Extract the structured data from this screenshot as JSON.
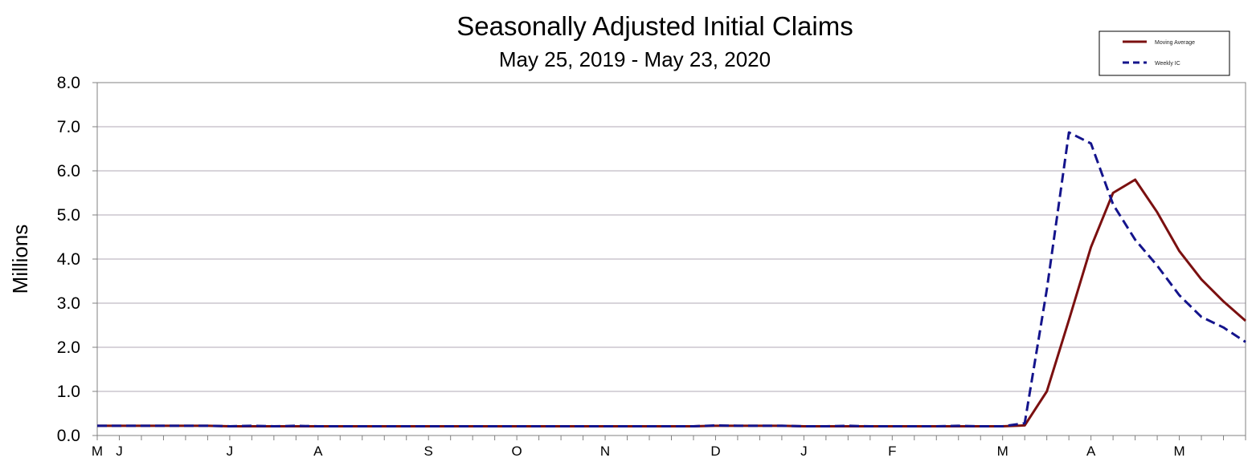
{
  "chart_data": {
    "type": "line",
    "title": "Seasonally Adjusted Initial Claims",
    "subtitle": "May 25, 2019 - May 23, 2020",
    "xlabel": "",
    "ylabel": "Millions",
    "ylim": [
      0,
      8
    ],
    "yticks": [
      "0.0",
      "1.0",
      "2.0",
      "3.0",
      "4.0",
      "5.0",
      "6.0",
      "7.0",
      "8.0"
    ],
    "x_tick_labels": [
      {
        "label": "M",
        "week": 0
      },
      {
        "label": "J",
        "week": 1
      },
      {
        "label": "J",
        "week": 6
      },
      {
        "label": "A",
        "week": 10
      },
      {
        "label": "S",
        "week": 15
      },
      {
        "label": "O",
        "week": 19
      },
      {
        "label": "N",
        "week": 23
      },
      {
        "label": "D",
        "week": 28
      },
      {
        "label": "J",
        "week": 32
      },
      {
        "label": "F",
        "week": 36
      },
      {
        "label": "M",
        "week": 41
      },
      {
        "label": "A",
        "week": 45
      },
      {
        "label": "M",
        "week": 49
      }
    ],
    "weeks": 53,
    "grid": true,
    "legend_position": "top-right",
    "series": [
      {
        "name": "Moving Average",
        "color": "#7b1010",
        "style": "solid",
        "values": [
          0.22,
          0.22,
          0.22,
          0.22,
          0.22,
          0.22,
          0.21,
          0.21,
          0.21,
          0.21,
          0.21,
          0.21,
          0.21,
          0.21,
          0.21,
          0.21,
          0.21,
          0.21,
          0.21,
          0.21,
          0.21,
          0.21,
          0.21,
          0.21,
          0.21,
          0.21,
          0.21,
          0.21,
          0.22,
          0.22,
          0.22,
          0.22,
          0.21,
          0.21,
          0.21,
          0.21,
          0.21,
          0.21,
          0.21,
          0.21,
          0.21,
          0.21,
          0.23,
          1.0,
          2.62,
          4.27,
          5.5,
          5.8,
          5.06,
          4.18,
          3.54,
          3.04,
          2.6
        ]
      },
      {
        "name": "Weekly IC",
        "color": "#14148c",
        "style": "dashed",
        "values": [
          0.22,
          0.22,
          0.22,
          0.22,
          0.22,
          0.22,
          0.21,
          0.22,
          0.21,
          0.22,
          0.21,
          0.21,
          0.21,
          0.21,
          0.21,
          0.21,
          0.21,
          0.21,
          0.21,
          0.21,
          0.21,
          0.21,
          0.21,
          0.21,
          0.21,
          0.21,
          0.21,
          0.21,
          0.23,
          0.22,
          0.22,
          0.22,
          0.21,
          0.21,
          0.22,
          0.21,
          0.21,
          0.21,
          0.21,
          0.22,
          0.21,
          0.21,
          0.28,
          3.31,
          6.87,
          6.62,
          5.24,
          4.44,
          3.85,
          3.18,
          2.69,
          2.45,
          2.12
        ]
      }
    ]
  }
}
